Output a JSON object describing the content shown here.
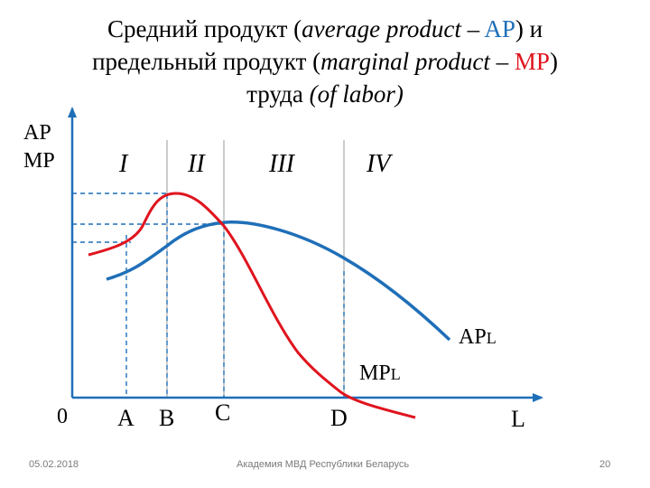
{
  "title": {
    "line1_a": "Средний продукт (",
    "line1_b": "average product",
    "line1_c": " – ",
    "line1_d": "AP",
    "line1_e": ") и",
    "line2_a": "предельный продукт (",
    "line2_b": "marginal product",
    "line2_c": " – ",
    "line2_d": "MP",
    "line2_e": ")",
    "line3_a": "труда ",
    "line3_b": "(of labor)"
  },
  "y_axis_labels": [
    "AP",
    "MP"
  ],
  "stages": [
    "I",
    "II",
    "III",
    "IV"
  ],
  "x_axis": {
    "origin": "0",
    "points": [
      "A",
      "B",
      "C",
      "D"
    ],
    "label": "L"
  },
  "curves": {
    "ap": {
      "label_main": "AP",
      "label_sub": "L",
      "color": "#1f6fb8"
    },
    "mp": {
      "label_main": "MP",
      "label_sub": "L",
      "color": "#e0141e"
    }
  },
  "colors": {
    "axis": "#1f6fb8",
    "guide": "#1f6fb8",
    "stage_divider": "#888888"
  },
  "footer": {
    "date": "05.02.2018",
    "organization": "Академия МВД Республики Беларусь",
    "page": "20"
  }
}
